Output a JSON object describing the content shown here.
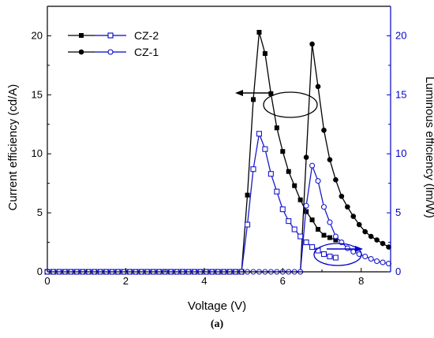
{
  "chart_data": {
    "type": "line",
    "xlabel": "Voltage (V)",
    "ylabel_left": "Current efficiency (cd/A)",
    "ylabel_right": "Luminous efficiency (lm/W)",
    "caption": "(a)",
    "xlim": [
      0,
      8.75
    ],
    "ylim_left": [
      0,
      22.5
    ],
    "ylim_right": [
      0,
      22.5
    ],
    "x_ticks": [
      0,
      2,
      4,
      6,
      8
    ],
    "y_ticks_left": [
      0,
      5,
      10,
      15,
      20
    ],
    "y_ticks_right": [
      0,
      5,
      10,
      15,
      20
    ],
    "colors": {
      "left_axis": "#000000",
      "right_axis": "#0000cc",
      "black_series": "#000000",
      "blue_series": "#1a1acc"
    },
    "legend": {
      "position": "top-left",
      "entries": [
        "CZ-2",
        "CZ-1"
      ]
    },
    "annotations": [
      {
        "kind": "ellipse-arrow",
        "points_to": "left-axis",
        "color": "#000000"
      },
      {
        "kind": "ellipse-arrow",
        "points_to": "right-axis",
        "color": "#0000cc"
      }
    ],
    "series": [
      {
        "name": "CZ-2",
        "axis": "left",
        "marker": "square-filled",
        "color": "#000000",
        "x": [
          0,
          0.15,
          0.3,
          0.45,
          0.6,
          0.75,
          0.9,
          1.05,
          1.2,
          1.35,
          1.5,
          1.65,
          1.8,
          1.95,
          2.1,
          2.25,
          2.4,
          2.55,
          2.7,
          2.85,
          3.0,
          3.15,
          3.3,
          3.45,
          3.6,
          3.75,
          3.9,
          4.05,
          4.2,
          4.35,
          4.5,
          4.65,
          4.8,
          4.95,
          5.1,
          5.25,
          5.4,
          5.55,
          5.7,
          5.85,
          6.0,
          6.15,
          6.3,
          6.45,
          6.6,
          6.75,
          6.9,
          7.05,
          7.2,
          7.35
        ],
        "y": [
          0,
          0,
          0,
          0,
          0,
          0,
          0,
          0,
          0,
          0,
          0,
          0,
          0,
          0,
          0,
          0,
          0,
          0,
          0,
          0,
          0,
          0,
          0,
          0,
          0,
          0,
          0,
          0,
          0,
          0,
          0,
          0,
          0,
          0,
          6.5,
          14.6,
          20.3,
          18.5,
          15.1,
          12.2,
          10.2,
          8.5,
          7.3,
          6.1,
          5.1,
          4.4,
          3.6,
          3.1,
          2.9,
          2.7
        ]
      },
      {
        "name": "CZ-1",
        "axis": "left",
        "marker": "circle-filled",
        "color": "#000000",
        "x": [
          0,
          0.15,
          0.3,
          0.45,
          0.6,
          0.75,
          0.9,
          1.05,
          1.2,
          1.35,
          1.5,
          1.65,
          1.8,
          1.95,
          2.1,
          2.25,
          2.4,
          2.55,
          2.7,
          2.85,
          3.0,
          3.15,
          3.3,
          3.45,
          3.6,
          3.75,
          3.9,
          4.05,
          4.2,
          4.35,
          4.5,
          4.65,
          4.8,
          4.95,
          5.1,
          5.25,
          5.4,
          5.55,
          5.7,
          5.85,
          6.0,
          6.15,
          6.3,
          6.45,
          6.6,
          6.75,
          6.9,
          7.05,
          7.2,
          7.35,
          7.5,
          7.65,
          7.8,
          7.95,
          8.1,
          8.25,
          8.4,
          8.55,
          8.7
        ],
        "y": [
          0,
          0,
          0,
          0,
          0,
          0,
          0,
          0,
          0,
          0,
          0,
          0,
          0,
          0,
          0,
          0,
          0,
          0,
          0,
          0,
          0,
          0,
          0,
          0,
          0,
          0,
          0,
          0,
          0,
          0,
          0,
          0,
          0,
          0,
          0,
          0,
          0,
          0,
          0,
          0,
          0,
          0,
          0,
          0,
          9.7,
          19.3,
          15.7,
          12.0,
          9.5,
          7.8,
          6.4,
          5.5,
          4.7,
          4.0,
          3.4,
          3.0,
          2.7,
          2.4,
          2.1
        ]
      },
      {
        "name": "CZ-2",
        "axis": "right",
        "marker": "square-open",
        "color": "#1a1acc",
        "x": [
          0,
          0.15,
          0.3,
          0.45,
          0.6,
          0.75,
          0.9,
          1.05,
          1.2,
          1.35,
          1.5,
          1.65,
          1.8,
          1.95,
          2.1,
          2.25,
          2.4,
          2.55,
          2.7,
          2.85,
          3.0,
          3.15,
          3.3,
          3.45,
          3.6,
          3.75,
          3.9,
          4.05,
          4.2,
          4.35,
          4.5,
          4.65,
          4.8,
          4.95,
          5.1,
          5.25,
          5.4,
          5.55,
          5.7,
          5.85,
          6.0,
          6.15,
          6.3,
          6.45,
          6.6,
          6.75,
          6.9,
          7.05,
          7.2,
          7.35
        ],
        "y": [
          0,
          0,
          0,
          0,
          0,
          0,
          0,
          0,
          0,
          0,
          0,
          0,
          0,
          0,
          0,
          0,
          0,
          0,
          0,
          0,
          0,
          0,
          0,
          0,
          0,
          0,
          0,
          0,
          0,
          0,
          0,
          0,
          0,
          0,
          4.0,
          8.7,
          11.7,
          10.4,
          8.3,
          6.8,
          5.3,
          4.3,
          3.6,
          3.0,
          2.5,
          2.1,
          1.8,
          1.5,
          1.3,
          1.2
        ]
      },
      {
        "name": "CZ-1",
        "axis": "right",
        "marker": "circle-open",
        "color": "#1a1acc",
        "x": [
          0,
          0.15,
          0.3,
          0.45,
          0.6,
          0.75,
          0.9,
          1.05,
          1.2,
          1.35,
          1.5,
          1.65,
          1.8,
          1.95,
          2.1,
          2.25,
          2.4,
          2.55,
          2.7,
          2.85,
          3.0,
          3.15,
          3.3,
          3.45,
          3.6,
          3.75,
          3.9,
          4.05,
          4.2,
          4.35,
          4.5,
          4.65,
          4.8,
          4.95,
          5.1,
          5.25,
          5.4,
          5.55,
          5.7,
          5.85,
          6.0,
          6.15,
          6.3,
          6.45,
          6.6,
          6.75,
          6.9,
          7.05,
          7.2,
          7.35,
          7.5,
          7.65,
          7.8,
          7.95,
          8.1,
          8.25,
          8.4,
          8.55,
          8.7
        ],
        "y": [
          0,
          0,
          0,
          0,
          0,
          0,
          0,
          0,
          0,
          0,
          0,
          0,
          0,
          0,
          0,
          0,
          0,
          0,
          0,
          0,
          0,
          0,
          0,
          0,
          0,
          0,
          0,
          0,
          0,
          0,
          0,
          0,
          0,
          0,
          0,
          0,
          0,
          0,
          0,
          0,
          0,
          0,
          0,
          0,
          5.6,
          9.0,
          7.7,
          5.5,
          4.2,
          3.0,
          2.5,
          2.0,
          1.7,
          1.5,
          1.3,
          1.1,
          0.9,
          0.8,
          0.7
        ]
      }
    ]
  }
}
